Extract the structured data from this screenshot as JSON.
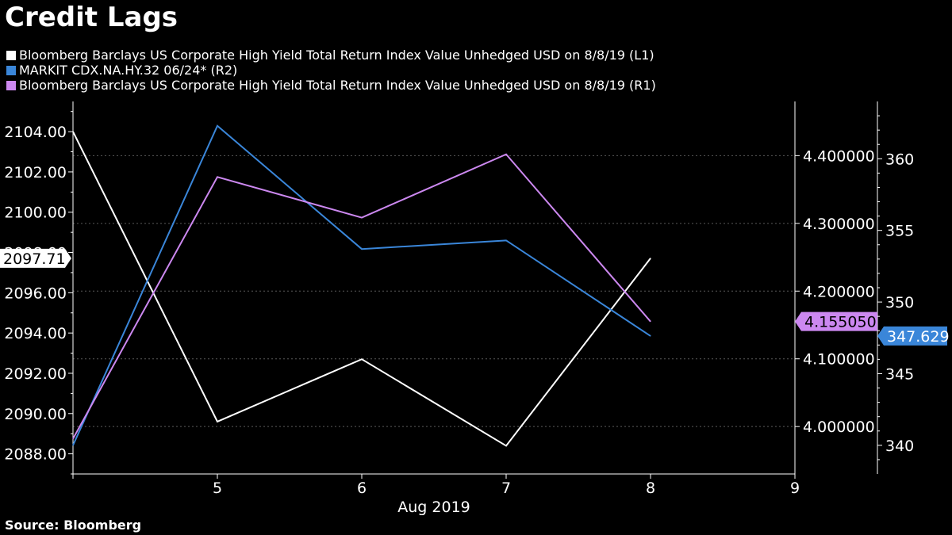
{
  "title": "Credit Lags",
  "source": "Source: Bloomberg",
  "chart_data": {
    "type": "line",
    "xlabel": "Aug 2019",
    "x_ticks": [
      "5",
      "6",
      "7",
      "8",
      "9"
    ],
    "x": [
      4,
      5,
      6,
      7,
      8
    ],
    "xlim": [
      4,
      9
    ],
    "series": [
      {
        "name": "Bloomberg Barclays US Corporate High Yield Total Return Index Value Unhedged USD  on 8/8/19 (L1)",
        "axis": "L1",
        "color": "#ffffff",
        "values": [
          2104.0,
          2089.6,
          2092.7,
          2088.4,
          2097.71
        ],
        "last_label": "2097.71"
      },
      {
        "name": "MARKIT CDX.NA.HY.32 06/24* (R2)",
        "axis": "R2",
        "color": "#3a86d9",
        "values": [
          340.0,
          362.3,
          353.7,
          354.3,
          347.629
        ],
        "last_label": "347.629"
      },
      {
        "name": "Bloomberg Barclays US Corporate High Yield Total Return Index Value Unhedged USD  on 8/8/19 (R1)",
        "axis": "R1",
        "color": "#cc88f0",
        "values": [
          3.982,
          4.3685,
          4.3085,
          4.402,
          4.15505
        ],
        "last_label": "4.155050"
      }
    ],
    "axes": {
      "L1": {
        "range": [
          2087,
          2105.5
        ],
        "ticks": [
          2104,
          2102,
          2100,
          2098,
          2096,
          2094,
          2092,
          2090,
          2088
        ],
        "tick_labels": [
          "2104.00",
          "2102.00",
          "2100.00",
          "2098.00",
          "2096.00",
          "2094.00",
          "2092.00",
          "2090.00",
          "2088.00"
        ]
      },
      "R1": {
        "range": [
          3.93,
          4.48
        ],
        "ticks": [
          4.4,
          4.3,
          4.2,
          4.1,
          4.0
        ],
        "tick_labels": [
          "4.400000",
          "4.300000",
          "4.200000",
          "4.100000",
          "4.000000"
        ]
      },
      "R2": {
        "range": [
          338,
          364
        ],
        "ticks": [
          360,
          355,
          350,
          345,
          340
        ],
        "tick_labels": [
          "360",
          "355",
          "350",
          "345",
          "340"
        ]
      }
    },
    "grid": true
  }
}
